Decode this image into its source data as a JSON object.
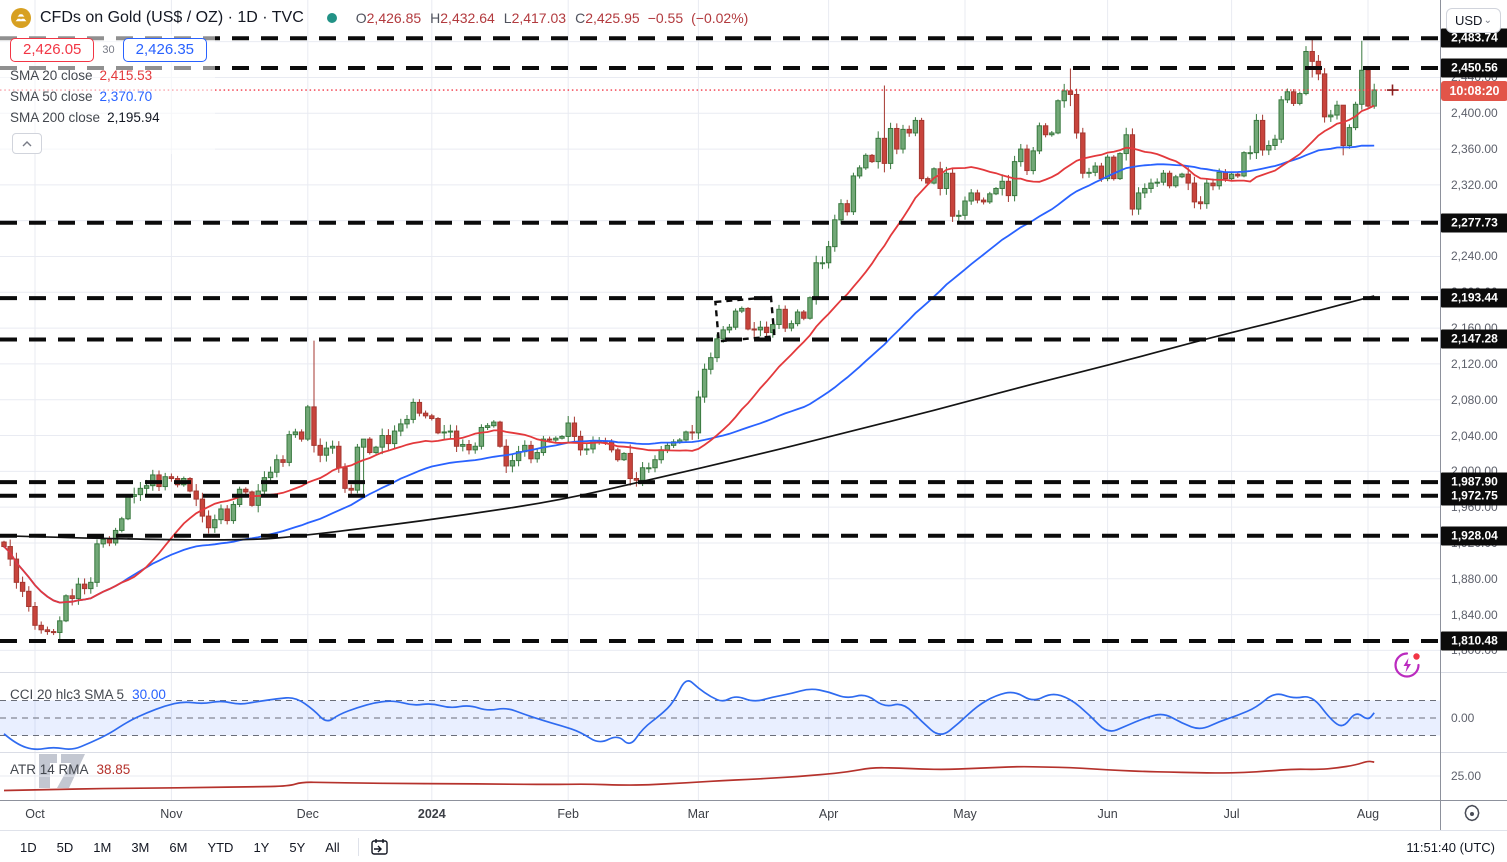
{
  "header": {
    "title": "CFDs on Gold (US$ / OZ) · 1D · TVC",
    "ohlc": [
      {
        "k": "O",
        "v": "2,426.85"
      },
      {
        "k": "H",
        "v": "2,432.64"
      },
      {
        "k": "L",
        "v": "2,417.03"
      },
      {
        "k": "C",
        "v": "2,425.95"
      }
    ],
    "change": "−0.55",
    "change_pct": "(−0.02%)"
  },
  "quote": {
    "bid": "2,426.05",
    "spread": "30",
    "ask": "2,426.35"
  },
  "legend": {
    "sma20_label": "SMA 20 close",
    "sma20_value": "2,415.53",
    "sma50_label": "SMA 50 close",
    "sma50_value": "2,370.70",
    "sma200_label": "SMA 200 close",
    "sma200_value": "2,195.94",
    "cci_label": "CCI 20 hlc3 SMA 5",
    "cci_value": "30.00",
    "atr_label": "ATR 14 RMA",
    "atr_value": "38.85"
  },
  "axis": {
    "currency": "USD",
    "countdown": "10:08:20",
    "cci_tick": "0.00",
    "atr_tick": "25.00",
    "clock": "11:51:40 (UTC)"
  },
  "toolbar": {
    "ranges": [
      "1D",
      "5D",
      "1M",
      "3M",
      "6M",
      "YTD",
      "1Y",
      "5Y",
      "All"
    ]
  },
  "colors": {
    "up": "#72a877",
    "up_border": "#39793f",
    "down": "#c8443c",
    "down_border": "#a43730",
    "sma20": "#e3393c",
    "sma50": "#2962ff",
    "sma200": "#141414",
    "level": "#0b0b0b",
    "current": "#f23645",
    "countdown_bg": "#e25549",
    "cci": "#2f6bf0",
    "cci_band": "rgba(41,98,255,0.10)",
    "atr": "#b5322c",
    "grid": "#e9ebf2",
    "badge_bg": "#0b0b0b",
    "gold_icon": "#d7a021",
    "status_dot": "#229286",
    "boost_icon": "#bb2bbf"
  },
  "chart_data": {
    "type": "candlestick",
    "symbol": "CFDs on Gold (US$ / OZ)",
    "timeframe": "1D",
    "exchange": "TVC",
    "price_ticks": [
      {
        "v": 2480,
        "label": "2,480.00"
      },
      {
        "v": 2440,
        "label": "2,440.00"
      },
      {
        "v": 2400,
        "label": "2,400.00"
      },
      {
        "v": 2360,
        "label": "2,360.00"
      },
      {
        "v": 2320,
        "label": "2,320.00"
      },
      {
        "v": 2280,
        "label": "2,280.00"
      },
      {
        "v": 2240,
        "label": "2,240.00"
      },
      {
        "v": 2200,
        "label": "2,200.00"
      },
      {
        "v": 2160,
        "label": "2,160.00"
      },
      {
        "v": 2120,
        "label": "2,120.00"
      },
      {
        "v": 2080,
        "label": "2,080.00"
      },
      {
        "v": 2040,
        "label": "2,040.00"
      },
      {
        "v": 2000,
        "label": "2,000.00"
      },
      {
        "v": 1960,
        "label": "1,960.00"
      },
      {
        "v": 1920,
        "label": "1,920.00"
      },
      {
        "v": 1880,
        "label": "1,880.00"
      },
      {
        "v": 1840,
        "label": "1,840.00"
      },
      {
        "v": 1800,
        "label": "1,800.00"
      }
    ],
    "levels": [
      {
        "price": 2483.74,
        "label": "2,483.74"
      },
      {
        "price": 2450.56,
        "label": "2,450.56"
      },
      {
        "price": 2277.73,
        "label": "2,277.73"
      },
      {
        "price": 2193.44,
        "label": "2,193.44"
      },
      {
        "price": 2147.28,
        "label": "2,147.28"
      },
      {
        "price": 1987.9,
        "label": "1,987.90"
      },
      {
        "price": 1972.75,
        "label": "1,972.75"
      },
      {
        "price": 1928.04,
        "label": "1,928.04"
      },
      {
        "price": 1810.48,
        "label": "1,810.48"
      }
    ],
    "current_price": 2425.95,
    "months": [
      {
        "label": "Oct",
        "i": 5
      },
      {
        "label": "Nov",
        "i": 27
      },
      {
        "label": "Dec",
        "i": 49
      },
      {
        "label": "2024",
        "i": 69,
        "bold": true
      },
      {
        "label": "Feb",
        "i": 91
      },
      {
        "label": "Mar",
        "i": 112
      },
      {
        "label": "Apr",
        "i": 133
      },
      {
        "label": "May",
        "i": 155
      },
      {
        "label": "Jun",
        "i": 178
      },
      {
        "label": "Jul",
        "i": 198
      },
      {
        "label": "Aug",
        "i": 220
      }
    ],
    "candles": {
      "open_first": 1921,
      "closes": [
        1916,
        1902,
        1876,
        1866,
        1849,
        1828,
        1823,
        1821,
        1820,
        1833,
        1861,
        1858,
        1874,
        1869,
        1876,
        1919,
        1924,
        1920,
        1934,
        1947,
        1972,
        1974,
        1981,
        1984,
        1996,
        1983,
        1994,
        1992,
        1985,
        1992,
        1978,
        1969,
        1950,
        1937,
        1946,
        1958,
        1945,
        1963,
        1980,
        1977,
        1962,
        1978,
        1993,
        1999,
        2013,
        2010,
        2041,
        2044,
        2036,
        2072,
        2029,
        2018,
        2026,
        2028,
        2004,
        1981,
        1979,
        2027,
        2036,
        2021,
        2027,
        2040,
        2031,
        2045,
        2053,
        2058,
        2077,
        2065,
        2062,
        2059,
        2043,
        2044,
        2045,
        2028,
        2030,
        2024,
        2028,
        2049,
        2051,
        2055,
        2028,
        2006,
        2012,
        2022,
        2029,
        2014,
        2021,
        2036,
        2035,
        2037,
        2039,
        2054,
        2039,
        2024,
        2025,
        2034,
        2034,
        2033,
        2024,
        2013,
        2020,
        1992,
        1990,
        2004,
        2004,
        2013,
        2024,
        2029,
        2033,
        2035,
        2044,
        2043,
        2083,
        2114,
        2127,
        2148,
        2158,
        2161,
        2179,
        2182,
        2159,
        2158,
        2161,
        2155,
        2164,
        2181,
        2160,
        2165,
        2178,
        2171,
        2194,
        2233,
        2233,
        2251,
        2281,
        2299,
        2290,
        2330,
        2339,
        2353,
        2346,
        2372,
        2344,
        2383,
        2360,
        2382,
        2378,
        2392,
        2327,
        2322,
        2338,
        2316,
        2333,
        2285,
        2286,
        2302,
        2311,
        2303,
        2301,
        2310,
        2316,
        2324,
        2308,
        2346,
        2360,
        2336,
        2358,
        2386,
        2376,
        2378,
        2414,
        2425,
        2421,
        2378,
        2333,
        2334,
        2341,
        2327,
        2351,
        2327,
        2355,
        2376,
        2293,
        2311,
        2316,
        2322,
        2323,
        2333,
        2319,
        2329,
        2332,
        2322,
        2301,
        2299,
        2322,
        2319,
        2334,
        2327,
        2332,
        2330,
        2356,
        2356,
        2392,
        2359,
        2364,
        2371,
        2415,
        2424,
        2411,
        2422,
        2469,
        2458,
        2444,
        2396,
        2398,
        2409,
        2364,
        2384,
        2410,
        2448,
        2408,
        2426
      ],
      "wick_overrides": {
        "9": [
          1838,
          1810
        ],
        "50": [
          2146,
          2021
        ],
        "58": [
          2031,
          1973
        ],
        "101": [
          2030,
          1984
        ],
        "142": [
          2431,
          2334
        ],
        "172": [
          2450,
          2408
        ],
        "210": [
          2475,
          2420
        ],
        "211": [
          2484,
          2440
        ],
        "216": [
          2378,
          2353
        ],
        "219": [
          2481,
          2404
        ],
        "221": [
          2433,
          2405
        ]
      }
    },
    "sma200_anchors": [
      [
        0,
        1928
      ],
      [
        20,
        1924
      ],
      [
        40,
        1923
      ],
      [
        48,
        1928
      ],
      [
        60,
        1938
      ],
      [
        75,
        1952
      ],
      [
        90,
        1968
      ],
      [
        105,
        1992
      ],
      [
        120,
        2016
      ],
      [
        135,
        2042
      ],
      [
        150,
        2068
      ],
      [
        165,
        2096
      ],
      [
        180,
        2122
      ],
      [
        195,
        2150
      ],
      [
        208,
        2172
      ],
      [
        221,
        2196
      ]
    ],
    "annotation_box": {
      "i0": 115,
      "price_top": 2192,
      "i1": 124,
      "price_bottom": 2148
    },
    "cci": {
      "period": "CCI 20 hlc3 SMA 5",
      "value": 30.0,
      "band": [
        -100,
        100
      ],
      "points": [
        [
          0,
          -90
        ],
        [
          2,
          -150
        ],
        [
          5,
          -185
        ],
        [
          8,
          -165
        ],
        [
          11,
          -185
        ],
        [
          14,
          -140
        ],
        [
          17,
          -90
        ],
        [
          20,
          -20
        ],
        [
          23,
          30
        ],
        [
          26,
          70
        ],
        [
          29,
          95
        ],
        [
          32,
          80
        ],
        [
          35,
          100
        ],
        [
          38,
          75
        ],
        [
          41,
          95
        ],
        [
          44,
          110
        ],
        [
          47,
          120
        ],
        [
          50,
          45
        ],
        [
          52,
          -30
        ],
        [
          54,
          20
        ],
        [
          57,
          60
        ],
        [
          60,
          90
        ],
        [
          63,
          100
        ],
        [
          66,
          70
        ],
        [
          69,
          85
        ],
        [
          72,
          55
        ],
        [
          75,
          75
        ],
        [
          78,
          40
        ],
        [
          81,
          60
        ],
        [
          84,
          20
        ],
        [
          87,
          -15
        ],
        [
          90,
          -45
        ],
        [
          93,
          -80
        ],
        [
          96,
          -150
        ],
        [
          99,
          -95
        ],
        [
          101,
          -165
        ],
        [
          103,
          -60
        ],
        [
          106,
          20
        ],
        [
          108,
          90
        ],
        [
          110,
          235
        ],
        [
          112,
          170
        ],
        [
          114,
          120
        ],
        [
          116,
          90
        ],
        [
          118,
          130
        ],
        [
          121,
          90
        ],
        [
          124,
          120
        ],
        [
          127,
          140
        ],
        [
          130,
          170
        ],
        [
          133,
          150
        ],
        [
          136,
          110
        ],
        [
          139,
          140
        ],
        [
          142,
          60
        ],
        [
          145,
          90
        ],
        [
          148,
          -20
        ],
        [
          151,
          -115
        ],
        [
          154,
          -30
        ],
        [
          157,
          70
        ],
        [
          160,
          130
        ],
        [
          163,
          155
        ],
        [
          166,
          90
        ],
        [
          169,
          145
        ],
        [
          172,
          110
        ],
        [
          175,
          20
        ],
        [
          178,
          -90
        ],
        [
          181,
          -45
        ],
        [
          184,
          0
        ],
        [
          187,
          30
        ],
        [
          190,
          -30
        ],
        [
          193,
          -70
        ],
        [
          196,
          -20
        ],
        [
          199,
          15
        ],
        [
          202,
          60
        ],
        [
          205,
          150
        ],
        [
          208,
          110
        ],
        [
          211,
          130
        ],
        [
          214,
          -10
        ],
        [
          216,
          -60
        ],
        [
          218,
          40
        ],
        [
          220,
          -15
        ],
        [
          221,
          30
        ]
      ]
    },
    "atr": {
      "period": "ATR 14 RMA",
      "value": 38.85,
      "points": [
        [
          0,
          10.5
        ],
        [
          8,
          11.5
        ],
        [
          16,
          12.5
        ],
        [
          24,
          13
        ],
        [
          32,
          13.5
        ],
        [
          40,
          14.2
        ],
        [
          46,
          14.8
        ],
        [
          48,
          19
        ],
        [
          52,
          18.5
        ],
        [
          58,
          18
        ],
        [
          64,
          17.5
        ],
        [
          72,
          17.2
        ],
        [
          80,
          17
        ],
        [
          88,
          16.5
        ],
        [
          94,
          17
        ],
        [
          100,
          15.8
        ],
        [
          104,
          16.2
        ],
        [
          108,
          17.5
        ],
        [
          112,
          19
        ],
        [
          116,
          20.5
        ],
        [
          120,
          21.5
        ],
        [
          124,
          23
        ],
        [
          128,
          24.5
        ],
        [
          132,
          26.5
        ],
        [
          136,
          29
        ],
        [
          140,
          33.5
        ],
        [
          144,
          33
        ],
        [
          148,
          32
        ],
        [
          152,
          31.5
        ],
        [
          156,
          32.5
        ],
        [
          160,
          33.5
        ],
        [
          164,
          34.5
        ],
        [
          168,
          34
        ],
        [
          172,
          33.5
        ],
        [
          176,
          32
        ],
        [
          180,
          30.5
        ],
        [
          184,
          29.5
        ],
        [
          188,
          29
        ],
        [
          192,
          28.3
        ],
        [
          196,
          28
        ],
        [
          200,
          28.5
        ],
        [
          204,
          30
        ],
        [
          208,
          32
        ],
        [
          212,
          31.5
        ],
        [
          215,
          33
        ],
        [
          218,
          36
        ],
        [
          220,
          40
        ],
        [
          221,
          38.85
        ]
      ]
    }
  }
}
